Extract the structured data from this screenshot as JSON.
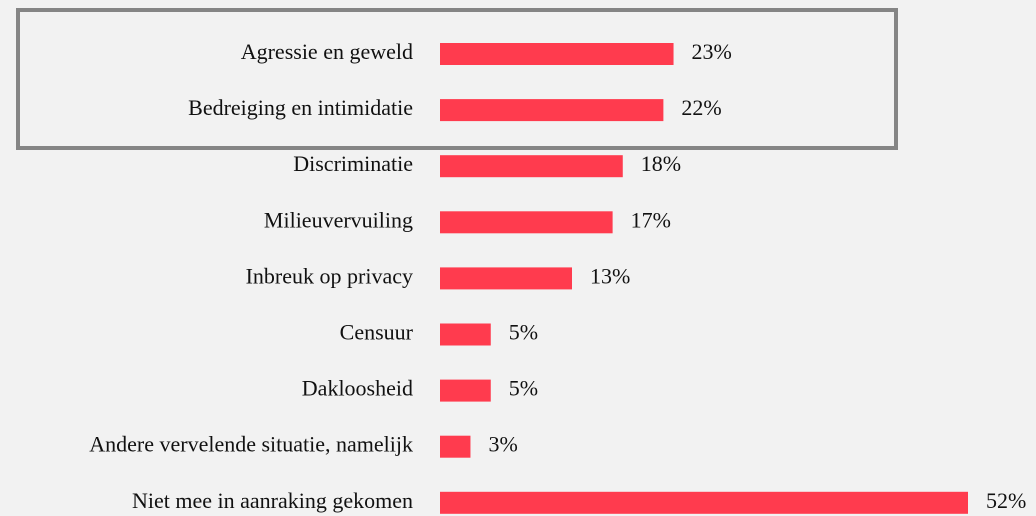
{
  "chart_data": {
    "type": "barh",
    "categories": [
      "Agressie en geweld",
      "Bedreiging en intimidatie",
      "Discriminatie",
      "Milieuvervuiling",
      "Inbreuk op privacy",
      "Censuur",
      "Dakloosheid",
      "Andere vervelende situatie, namelijk",
      "Niet mee in aanraking gekomen"
    ],
    "values": [
      23,
      22,
      18,
      17,
      13,
      5,
      5,
      3,
      52
    ],
    "value_labels": [
      "23%",
      "22%",
      "18%",
      "17%",
      "13%",
      "5%",
      "5%",
      "3%",
      "52%"
    ],
    "color": "#ff3b4e"
  }
}
